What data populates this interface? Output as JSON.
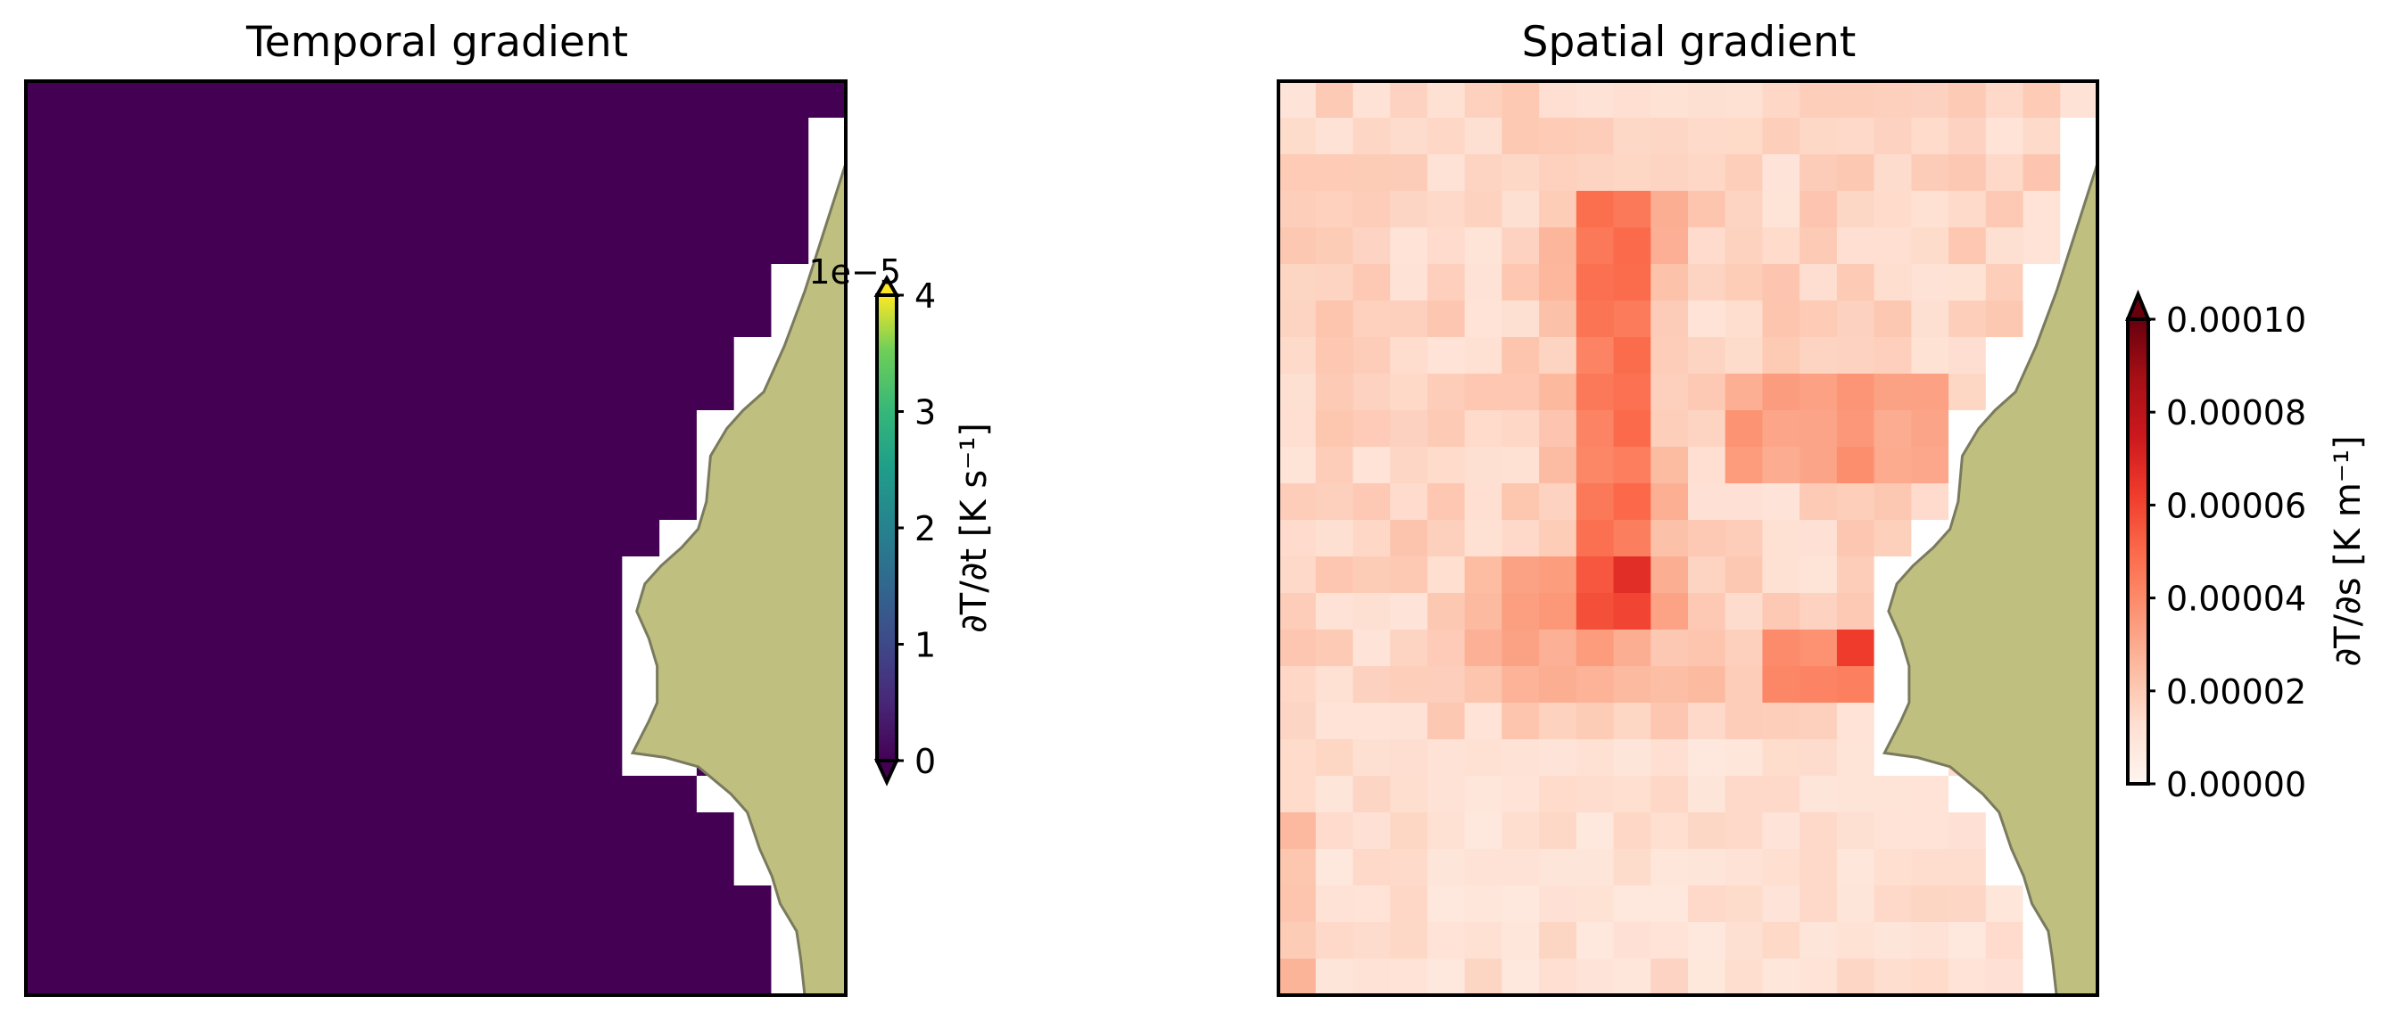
{
  "chart_data": [
    {
      "type": "heatmap",
      "title": "Temporal gradient",
      "grid_rows": 25,
      "grid_cols": 22,
      "values": "all cells at colorbar minimum (0) except the masked white strip along the coastline",
      "uniform_value": 0,
      "cmap": "viridis",
      "colorbar": {
        "label": "∂T/∂t [K s⁻¹]",
        "offset_text": "1e−5",
        "ticks": [
          "0",
          "1",
          "2",
          "3",
          "4"
        ],
        "range": [
          0,
          4
        ],
        "extend": "both"
      },
      "land_color": "#bfbf80"
    },
    {
      "type": "heatmap",
      "title": "Spatial gradient",
      "grid_rows": 25,
      "grid_cols": 22,
      "cmap": "Reds",
      "colorbar": {
        "label": "∂T/∂s [K m⁻¹]",
        "ticks": [
          "0.00000",
          "0.00002",
          "0.00004",
          "0.00006",
          "0.00008",
          "0.00010"
        ],
        "range": [
          0,
          0.0001
        ],
        "extend": "max"
      },
      "land_color": "#bfbf80"
    }
  ],
  "colors": {
    "viridis_min": "#440154",
    "land": "#bfbf80",
    "land_edge": "#7a7a5e"
  }
}
